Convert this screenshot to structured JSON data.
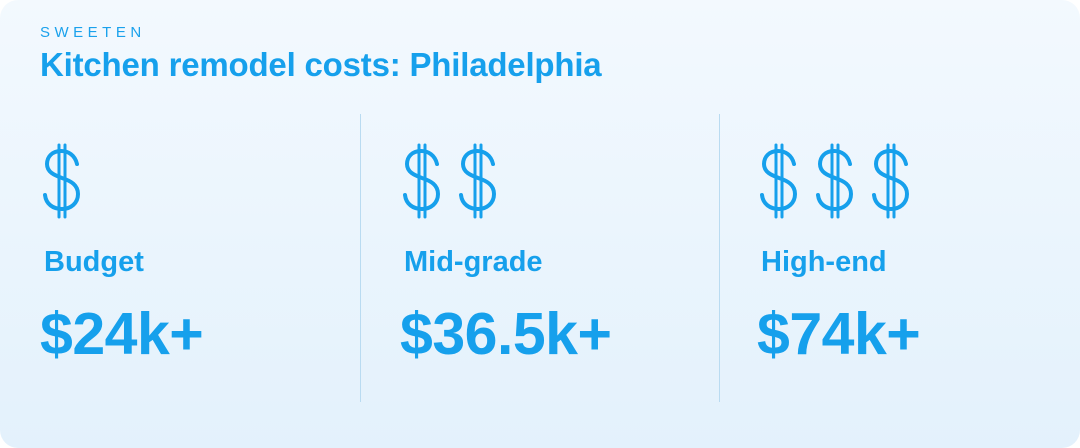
{
  "brand": "SWEETEN",
  "title": "Kitchen remodel costs: Philadelphia",
  "accent_color": "#16a0ec",
  "tiers": [
    {
      "symbol_count": 1,
      "icon": "dollar-sign-icon",
      "label": "Budget",
      "price": "$24k+"
    },
    {
      "symbol_count": 2,
      "icon": "dollar-sign-icon",
      "label": "Mid-grade",
      "price": "$36.5k+"
    },
    {
      "symbol_count": 3,
      "icon": "dollar-sign-icon",
      "label": "High-end",
      "price": "$74k+"
    }
  ]
}
